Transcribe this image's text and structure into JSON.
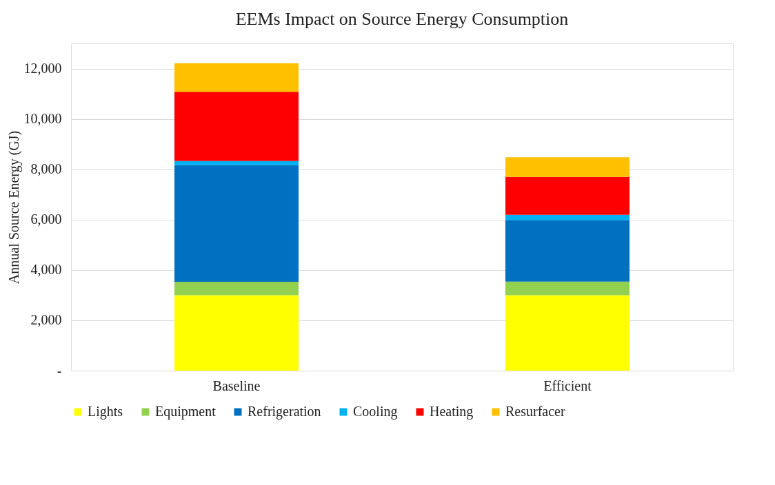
{
  "chart_data": {
    "type": "bar",
    "stacked": true,
    "title": "EEMs Impact on Source Energy Consumption",
    "ylabel": "Annual Source Energy (GJ)",
    "categories": [
      "Baseline",
      "Efficient"
    ],
    "series": [
      {
        "name": "Lights",
        "color": "#ffff00",
        "values": [
          3000,
          3000
        ]
      },
      {
        "name": "Equipment",
        "color": "#92d050",
        "values": [
          530,
          540
        ]
      },
      {
        "name": "Refrigeration",
        "color": "#0070c0",
        "values": [
          4630,
          2440
        ]
      },
      {
        "name": "Cooling",
        "color": "#00b0f0",
        "values": [
          170,
          210
        ]
      },
      {
        "name": "Heating",
        "color": "#ff0000",
        "values": [
          2750,
          1510
        ]
      },
      {
        "name": "Resurfacer",
        "color": "#ffc000",
        "values": [
          1130,
          780
        ]
      }
    ],
    "ylim": [
      0,
      13000
    ],
    "yticks": [
      {
        "value": 0,
        "label": "-"
      },
      {
        "value": 2000,
        "label": "2,000"
      },
      {
        "value": 4000,
        "label": "4,000"
      },
      {
        "value": 6000,
        "label": "6,000"
      },
      {
        "value": 8000,
        "label": "8,000"
      },
      {
        "value": 10000,
        "label": "10,000"
      },
      {
        "value": 12000,
        "label": "12,000"
      }
    ],
    "grid": "y",
    "legend": "bottom"
  }
}
